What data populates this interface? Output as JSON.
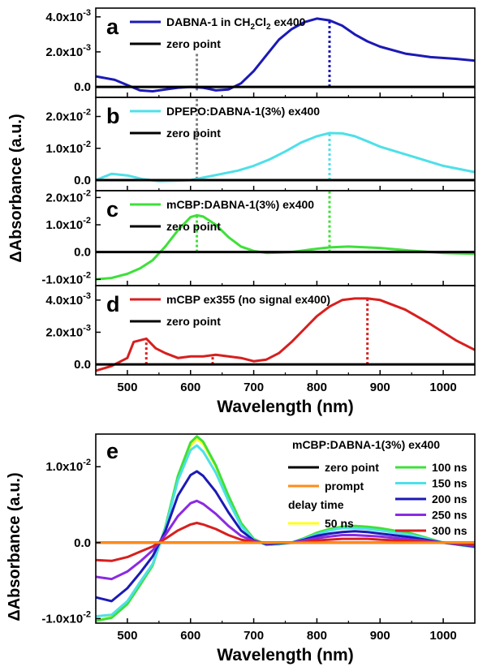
{
  "chart_data": [
    {
      "id": "a",
      "type": "line",
      "panel_label": "a",
      "xlim": [
        450,
        1050
      ],
      "ylim": [
        -0.0006,
        0.0045
      ],
      "yticks": [
        {
          "v": 0.0,
          "label": "0.0"
        },
        {
          "v": 0.002,
          "base": "2.0x10",
          "exp": "-3"
        },
        {
          "v": 0.004,
          "base": "4.0x10",
          "exp": "-3"
        }
      ],
      "series": [
        {
          "name": "DABNA-1 in CH2Cl2 ex400",
          "color": "#1c1ab5",
          "x": [
            450,
            480,
            500,
            520,
            540,
            560,
            580,
            600,
            620,
            640,
            660,
            680,
            700,
            720,
            740,
            760,
            780,
            800,
            820,
            840,
            860,
            880,
            900,
            940,
            980,
            1020,
            1050
          ],
          "y": [
            0.0006,
            0.0004,
            0.0001,
            -0.0002,
            -0.00025,
            -0.00015,
            -5e-05,
            0.0,
            -5e-05,
            -0.0002,
            -0.00015,
            0.0002,
            0.0009,
            0.0018,
            0.0027,
            0.0033,
            0.0037,
            0.0039,
            0.0038,
            0.0035,
            0.003,
            0.0026,
            0.0023,
            0.0019,
            0.0017,
            0.0016,
            0.0015
          ]
        },
        {
          "name": "zero point",
          "color": "#000000",
          "x": [
            450,
            1050
          ],
          "y": [
            0,
            0
          ]
        }
      ],
      "legend": [
        {
          "text": "DABNA-1 in CH",
          "sub": "2",
          "text2": "Cl",
          "sub2": "2",
          "text3": " ex400",
          "color": "#1c1ab5"
        },
        {
          "text": "zero point",
          "color": "#000000"
        }
      ],
      "markers": [
        {
          "x": 610,
          "y0": -0.0002,
          "y1": 0.0019,
          "color": "#808080"
        },
        {
          "x": 820,
          "y0": 0.0,
          "y1": 0.0038,
          "color": "#1c1ab5"
        }
      ]
    },
    {
      "id": "b",
      "type": "line",
      "panel_label": "b",
      "xlim": [
        450,
        1050
      ],
      "ylim": [
        -0.0033,
        0.026
      ],
      "yticks": [
        {
          "v": 0.0,
          "label": "0.0"
        },
        {
          "v": 0.01,
          "base": "1.0x10",
          "exp": "-2"
        },
        {
          "v": 0.02,
          "base": "2.0x10",
          "exp": "-2"
        }
      ],
      "series": [
        {
          "name": "DPEPO:DABNA-1(3%) ex400",
          "color": "#4ee0e8",
          "x": [
            450,
            475,
            500,
            525,
            550,
            575,
            600,
            625,
            650,
            675,
            700,
            725,
            750,
            775,
            800,
            820,
            840,
            860,
            880,
            900,
            950,
            1000,
            1050
          ],
          "y": [
            0.0,
            0.002,
            0.0015,
            0.0003,
            -0.0003,
            -0.0002,
            0.0,
            0.001,
            0.002,
            0.003,
            0.0045,
            0.0065,
            0.009,
            0.0118,
            0.0138,
            0.0148,
            0.0147,
            0.0138,
            0.0122,
            0.0105,
            0.0075,
            0.0045,
            0.0025
          ]
        },
        {
          "name": "zero point",
          "color": "#000000",
          "x": [
            450,
            1050
          ],
          "y": [
            0,
            0
          ]
        }
      ],
      "legend": [
        {
          "text": "DPEPO:DABNA-1(3%) ex400",
          "color": "#4ee0e8"
        },
        {
          "text": "zero point",
          "color": "#000000"
        }
      ],
      "markers": [
        {
          "x": 610,
          "y0": 0.0003,
          "y1": 0.026,
          "color": "#808080"
        },
        {
          "x": 820,
          "y0": 0.0,
          "y1": 0.0147,
          "color": "#4ee0e8"
        }
      ]
    },
    {
      "id": "c",
      "type": "line",
      "panel_label": "c",
      "xlim": [
        450,
        1050
      ],
      "ylim": [
        -0.0123,
        0.0225
      ],
      "yticks": [
        {
          "v": -0.01,
          "base": "-1.0x10",
          "exp": "-2"
        },
        {
          "v": 0.0,
          "label": "0.0"
        },
        {
          "v": 0.01,
          "base": "1.0x10",
          "exp": "-2"
        },
        {
          "v": 0.02,
          "base": "2.0x10",
          "exp": "-2"
        }
      ],
      "series": [
        {
          "name": "mCBP:DABNA-1(3%) ex400",
          "color": "#3ee03a",
          "x": [
            450,
            475,
            500,
            520,
            540,
            560,
            580,
            600,
            610,
            620,
            640,
            660,
            680,
            700,
            720,
            740,
            760,
            780,
            800,
            820,
            850,
            900,
            950,
            1000,
            1050
          ],
          "y": [
            -0.01,
            -0.0095,
            -0.008,
            -0.006,
            -0.003,
            0.002,
            0.008,
            0.0128,
            0.0135,
            0.013,
            0.01,
            0.0055,
            0.002,
            0.0004,
            -0.0003,
            -0.0002,
            0.0,
            0.0006,
            0.0012,
            0.0017,
            0.002,
            0.0015,
            0.0005,
            -0.0003,
            -0.0006
          ]
        },
        {
          "name": "zero point",
          "color": "#000000",
          "x": [
            450,
            1050
          ],
          "y": [
            0,
            0
          ]
        }
      ],
      "legend": [
        {
          "text": "mCBP:DABNA-1(3%) ex400",
          "color": "#3ee03a"
        },
        {
          "text": "zero point",
          "color": "#000000"
        }
      ],
      "markers": [
        {
          "x": 610,
          "y0": 0.0,
          "y1": 0.0135,
          "color": "#3ee03a"
        },
        {
          "x": 820,
          "y0": 0.0,
          "y1": 0.0225,
          "color": "#3ee03a"
        }
      ]
    },
    {
      "id": "d",
      "type": "line",
      "panel_label": "d",
      "xlim": [
        450,
        1050
      ],
      "ylim": [
        -0.00065,
        0.0049
      ],
      "yticks": [
        {
          "v": 0.0,
          "label": "0.0"
        },
        {
          "v": 0.002,
          "base": "2.0x10",
          "exp": "-3"
        },
        {
          "v": 0.004,
          "base": "4.0x10",
          "exp": "-3"
        }
      ],
      "xticks": [
        500,
        600,
        700,
        800,
        900,
        1000
      ],
      "xlabel": "Wavelength (nm)",
      "series": [
        {
          "name": "mCBP ex355 (no signal ex400)",
          "color": "#d71f1f",
          "x": [
            450,
            475,
            500,
            510,
            530,
            545,
            560,
            580,
            600,
            620,
            640,
            660,
            680,
            700,
            720,
            740,
            760,
            780,
            800,
            820,
            840,
            860,
            880,
            900,
            940,
            980,
            1020,
            1050
          ],
          "y": [
            -0.0004,
            -0.0001,
            0.0004,
            0.0014,
            0.0016,
            0.001,
            0.0007,
            0.0004,
            0.0005,
            0.0005,
            0.0006,
            0.0005,
            0.0004,
            0.0002,
            0.0003,
            0.0007,
            0.0014,
            0.0022,
            0.003,
            0.0036,
            0.004,
            0.0041,
            0.0041,
            0.004,
            0.0034,
            0.0025,
            0.0015,
            0.0009
          ]
        },
        {
          "name": "zero point",
          "color": "#000000",
          "x": [
            450,
            1050
          ],
          "y": [
            0,
            0
          ]
        }
      ],
      "legend": [
        {
          "text": "mCBP ex355 (no signal ex400)",
          "color": "#d71f1f"
        },
        {
          "text": "zero point",
          "color": "#000000"
        }
      ],
      "markers": [
        {
          "x": 530,
          "y0": 0.0,
          "y1": 0.0016,
          "color": "#d71f1f"
        },
        {
          "x": 635,
          "y0": 0.0,
          "y1": 0.0006,
          "color": "#d71f1f"
        },
        {
          "x": 880,
          "y0": 0.0,
          "y1": 0.0041,
          "color": "#d71f1f"
        }
      ]
    },
    {
      "id": "e",
      "type": "line",
      "panel_label": "e",
      "xlim": [
        450,
        1050
      ],
      "ylim": [
        -0.0106,
        0.0143
      ],
      "yticks": [
        {
          "v": -0.01,
          "base": "-1.0x10",
          "exp": "-2"
        },
        {
          "v": 0.0,
          "label": "0.0"
        },
        {
          "v": 0.01,
          "base": "1.0x10",
          "exp": "-2"
        }
      ],
      "xticks": [
        500,
        600,
        700,
        800,
        900,
        1000
      ],
      "xlabel": "Wavelength (nm)",
      "legend_title": "mCBP:DABNA-1(3%) ex400",
      "legend_note": "delay time",
      "series": [
        {
          "name": "zero point",
          "color": "#000000",
          "x": [
            450,
            1050
          ],
          "y": [
            0,
            0
          ]
        },
        {
          "name": "prompt",
          "color": "#ff8c1a",
          "x": [
            450,
            1050
          ],
          "y": [
            0,
            0
          ]
        },
        {
          "name": "50 ns",
          "color": "#ffff1a",
          "x": [
            450,
            475,
            500,
            520,
            540,
            560,
            580,
            600,
            610,
            620,
            640,
            660,
            680,
            700,
            720,
            740,
            760,
            780,
            800,
            820,
            840,
            860,
            880,
            900,
            950,
            1000,
            1050
          ],
          "y": [
            -0.0102,
            -0.0098,
            -0.008,
            -0.0055,
            -0.003,
            0.002,
            0.0085,
            0.0128,
            0.0137,
            0.013,
            0.01,
            0.006,
            0.0025,
            0.0005,
            -0.0003,
            -0.0002,
            0.0,
            0.0006,
            0.0013,
            0.0018,
            0.0021,
            0.0022,
            0.0021,
            0.0019,
            0.0012,
            0.0,
            -0.0006
          ]
        },
        {
          "name": "100 ns",
          "color": "#3ee03a",
          "x": [
            450,
            475,
            500,
            520,
            540,
            560,
            580,
            600,
            610,
            620,
            640,
            660,
            680,
            700,
            720,
            740,
            760,
            780,
            800,
            820,
            840,
            860,
            880,
            900,
            950,
            1000,
            1050
          ],
          "y": [
            -0.0103,
            -0.0099,
            -0.0081,
            -0.0056,
            -0.003,
            0.002,
            0.0088,
            0.0132,
            0.014,
            0.0133,
            0.0102,
            0.0062,
            0.0026,
            0.0005,
            -0.0003,
            -0.0002,
            0.0,
            0.0006,
            0.0013,
            0.0018,
            0.0021,
            0.0022,
            0.0021,
            0.0019,
            0.0012,
            0.0,
            -0.0006
          ]
        },
        {
          "name": "150 ns",
          "color": "#4ee0e8",
          "x": [
            450,
            475,
            500,
            520,
            540,
            560,
            580,
            600,
            610,
            620,
            640,
            660,
            680,
            700,
            720,
            740,
            760,
            780,
            800,
            820,
            840,
            860,
            880,
            900,
            950,
            1000,
            1050
          ],
          "y": [
            -0.0097,
            -0.0095,
            -0.0077,
            -0.0052,
            -0.0028,
            0.0018,
            0.0082,
            0.0122,
            0.0128,
            0.012,
            0.0092,
            0.0055,
            0.0022,
            0.0004,
            -0.0003,
            -0.0002,
            0.0,
            0.0005,
            0.0011,
            0.0016,
            0.0019,
            0.0019,
            0.0018,
            0.0016,
            0.001,
            0.0,
            -0.0006
          ]
        },
        {
          "name": "200 ns",
          "color": "#1c1ab5",
          "x": [
            450,
            475,
            500,
            520,
            540,
            560,
            580,
            600,
            610,
            620,
            640,
            660,
            680,
            700,
            720,
            740,
            760,
            780,
            800,
            820,
            840,
            860,
            880,
            900,
            950,
            1000,
            1050
          ],
          "y": [
            -0.0072,
            -0.0077,
            -0.006,
            -0.004,
            -0.0018,
            0.0015,
            0.0062,
            0.0089,
            0.0094,
            0.0088,
            0.0067,
            0.004,
            0.0016,
            0.0003,
            -0.0002,
            -0.0001,
            0.0,
            0.0004,
            0.0009,
            0.0012,
            0.0014,
            0.0015,
            0.0014,
            0.0012,
            0.0007,
            0.0,
            -0.0005
          ]
        },
        {
          "name": "250 ns",
          "color": "#8a2be2",
          "x": [
            450,
            475,
            500,
            520,
            540,
            560,
            580,
            600,
            610,
            620,
            640,
            660,
            680,
            700,
            720,
            740,
            760,
            780,
            800,
            820,
            840,
            860,
            880,
            900,
            950,
            1000,
            1050
          ],
          "y": [
            -0.0045,
            -0.0048,
            -0.0038,
            -0.0025,
            -0.001,
            0.001,
            0.0035,
            0.0052,
            0.0055,
            0.0051,
            0.0038,
            0.0022,
            0.0009,
            0.0002,
            -0.0001,
            0.0,
            0.0,
            0.0003,
            0.0006,
            0.0008,
            0.001,
            0.001,
            0.0009,
            0.0008,
            0.0004,
            0.0,
            -0.0004
          ]
        },
        {
          "name": "300 ns",
          "color": "#d71f1f",
          "x": [
            450,
            475,
            500,
            520,
            540,
            560,
            580,
            600,
            610,
            620,
            640,
            660,
            680,
            700,
            720,
            740,
            760,
            780,
            800,
            820,
            840,
            860,
            880,
            900,
            950,
            1000,
            1050
          ],
          "y": [
            -0.0023,
            -0.0024,
            -0.0019,
            -0.0012,
            -0.0005,
            0.0005,
            0.0016,
            0.0024,
            0.0026,
            0.0024,
            0.0018,
            0.001,
            0.0004,
            0.0001,
            0.0,
            0.0,
            0.0,
            0.0001,
            0.0003,
            0.0004,
            0.0005,
            0.0005,
            0.0005,
            0.0004,
            0.0002,
            0.0,
            -0.0002
          ]
        }
      ],
      "legend": [
        {
          "text": "zero point",
          "color": "#000000"
        },
        {
          "text": "prompt",
          "color": "#ff8c1a"
        },
        {
          "text": "50 ns",
          "color": "#ffff1a"
        },
        {
          "text": "100 ns",
          "color": "#3ee03a"
        },
        {
          "text": "150 ns",
          "color": "#4ee0e8"
        },
        {
          "text": "200 ns",
          "color": "#1c1ab5"
        },
        {
          "text": "250 ns",
          "color": "#8a2be2"
        },
        {
          "text": "300 ns",
          "color": "#d71f1f"
        }
      ]
    }
  ],
  "labels": {
    "ylabel_top": "ΔAbsorbance (a.u.)",
    "ylabel_bottom": "ΔAbsorbance (a.u.)"
  }
}
